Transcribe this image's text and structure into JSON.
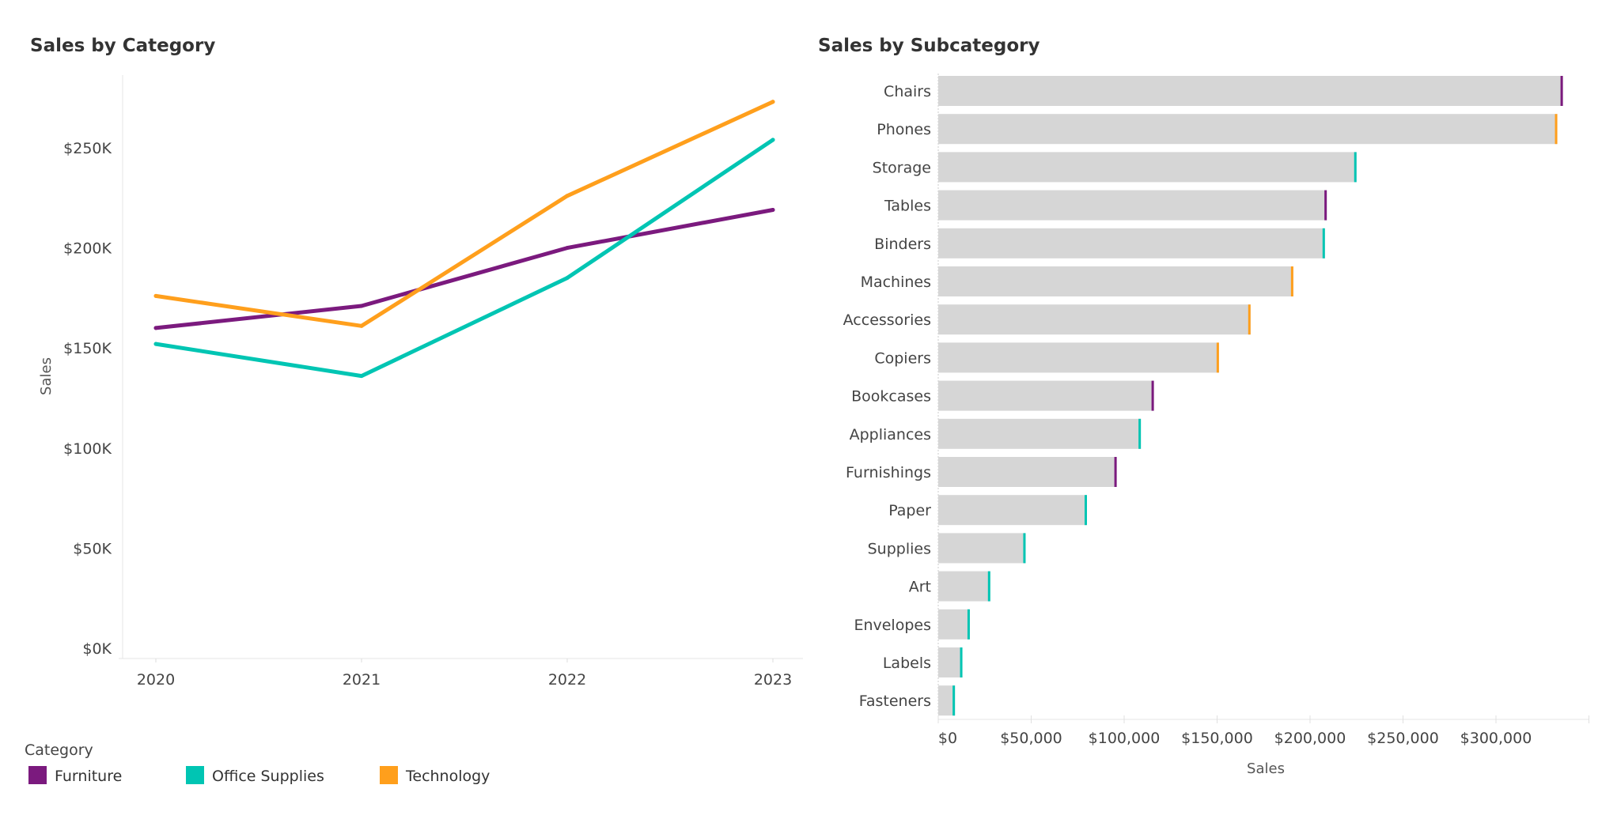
{
  "colors": {
    "Furniture": "#7b1a7e",
    "Office Supplies": "#00c5b3",
    "Technology": "#ff9f1c",
    "bar": "#d6d6d6",
    "axis": "#e4e4e4"
  },
  "chart_data": [
    {
      "type": "line",
      "title": "Sales by Category",
      "xlabel": "",
      "ylabel": "Sales",
      "x": [
        "2020",
        "2021",
        "2022",
        "2023"
      ],
      "ylim": [
        0,
        280000
      ],
      "yticks": [
        0,
        50000,
        100000,
        150000,
        200000,
        250000
      ],
      "ytick_labels": [
        "$0K",
        "$50K",
        "$100K",
        "$150K",
        "$200K",
        "$250K"
      ],
      "grid": false,
      "series": [
        {
          "name": "Furniture",
          "values": [
            160000,
            171000,
            200000,
            219000
          ]
        },
        {
          "name": "Office Supplies",
          "values": [
            152000,
            136000,
            185000,
            254000
          ]
        },
        {
          "name": "Technology",
          "values": [
            176000,
            161000,
            226000,
            273000
          ]
        }
      ],
      "legend": {
        "title": "Category",
        "placement": "bottom-left",
        "items": [
          "Furniture",
          "Office Supplies",
          "Technology"
        ]
      }
    },
    {
      "type": "bar",
      "orientation": "horizontal",
      "title": "Sales by Subcategory",
      "xlabel": "Sales",
      "ylabel": "",
      "xlim": [
        0,
        350000
      ],
      "xticks": [
        0,
        50000,
        100000,
        150000,
        200000,
        250000,
        300000
      ],
      "xtick_labels": [
        "$0",
        "$50,000",
        "$100,000",
        "$150,000",
        "$200,000",
        "$250,000",
        "$300,000"
      ],
      "grid": false,
      "categories": [
        "Chairs",
        "Phones",
        "Storage",
        "Tables",
        "Binders",
        "Machines",
        "Accessories",
        "Copiers",
        "Bookcases",
        "Appliances",
        "Furnishings",
        "Paper",
        "Supplies",
        "Art",
        "Envelopes",
        "Labels",
        "Fasteners"
      ],
      "values": [
        336000,
        333000,
        225000,
        209000,
        208000,
        191000,
        168000,
        151000,
        116000,
        109000,
        96000,
        80000,
        47000,
        28000,
        17000,
        13000,
        9000
      ],
      "category_group": [
        "Furniture",
        "Technology",
        "Office Supplies",
        "Furniture",
        "Office Supplies",
        "Technology",
        "Technology",
        "Technology",
        "Furniture",
        "Office Supplies",
        "Furniture",
        "Office Supplies",
        "Office Supplies",
        "Office Supplies",
        "Office Supplies",
        "Office Supplies",
        "Office Supplies"
      ]
    }
  ]
}
